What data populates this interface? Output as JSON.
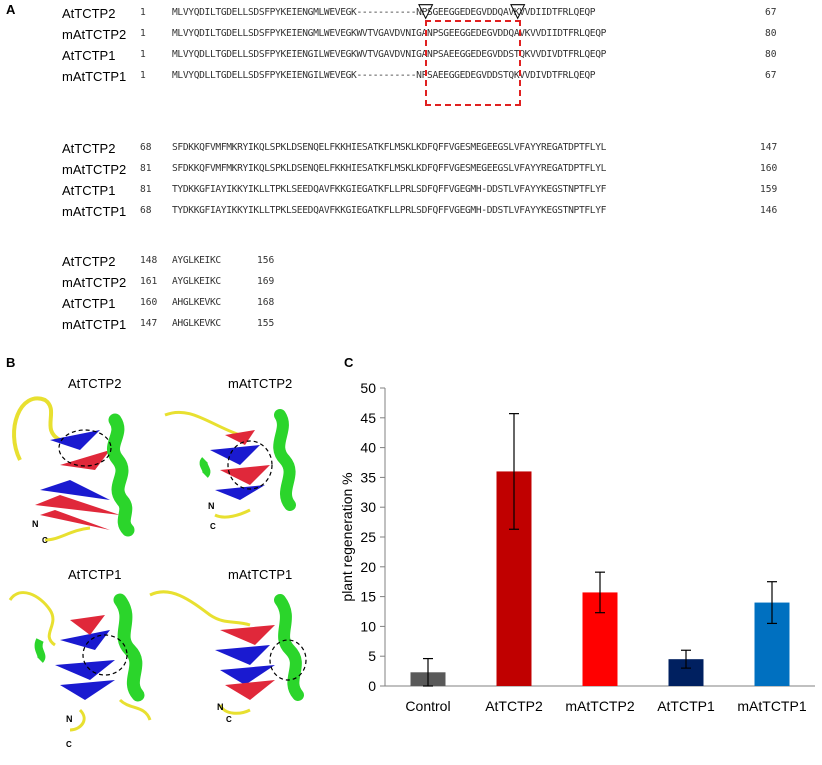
{
  "panels": {
    "a": "A",
    "b": "B",
    "c": "C"
  },
  "alignment": {
    "blocks": [
      {
        "rows": [
          {
            "name": "AtTCTP2",
            "start": "1",
            "seq": "MLVYQDILTGDELLSDSFPYKEIENGMLWEVEGK-----------NPSGEEGGEDEGVDDQAVKVVDIIDTFRLQEQP",
            "end": "67"
          },
          {
            "name": "mAtTCTP2",
            "start": "1",
            "seq": "MLVYQDILTGDELLSDSFPYKEIENGMLWEVEGKWVTVGAVDVNIGANPSGEEGGEDEGVDDQAVKVVDIIDTFRLQEQP",
            "end": "80"
          },
          {
            "name": "AtTCTP1",
            "start": "1",
            "seq": "MLVYQDLLTGDELLSDSFPYKEIENGILWEVEGKWVTVGAVDVNIGANPSAEEGGEDEGVDDSTQKVVDIVDTFRLQEQP",
            "end": "80"
          },
          {
            "name": "mAtTCTP1",
            "start": "1",
            "seq": "MLVYQDLLTGDELLSDSFPYKEIENGILWEVEGK-----------NPSAEEGGEDEGVDDSTQKVVDIVDTFRLQEQP",
            "end": "67"
          }
        ]
      },
      {
        "rows": [
          {
            "name": "AtTCTP2",
            "start": "68",
            "seq": "SFDKKQFVMFMKRYIKQLSPKLDSENQELFKKHIESATKFLMSKLKDFQFFVGESMEGEEGSLVFAYYREGATDPTFLYL",
            "end": "147"
          },
          {
            "name": "mAtTCTP2",
            "start": "81",
            "seq": "SFDKKQFVMFMKRYIKQLSPKLDSENQELFKKHIESATKFLMSKLKDFQFFVGESMEGEEGSLVFAYYREGATDPTFLYL",
            "end": "160"
          },
          {
            "name": "AtTCTP1",
            "start": "81",
            "seq": "TYDKKGFIAYIKKYIKLLTPKLSEEDQAVFKKGIEGATKFLLPRLSDFQFFVGEGMH-DDSTLVFAYYKEGSTNPTFLYF",
            "end": "159"
          },
          {
            "name": "mAtTCTP1",
            "start": "68",
            "seq": "TYDKKGFIAYIKKYIKLLTPKLSEEDQAVFKKGIEGATKFLLPRLSDFQFFVGEGMH-DDSTLVFAYYKEGSTNPTFLYF",
            "end": "146"
          }
        ]
      },
      {
        "rows": [
          {
            "name": "AtTCTP2",
            "start": "148",
            "seq": "AYGLKEIKC",
            "end": "156"
          },
          {
            "name": "mAtTCTP2",
            "start": "161",
            "seq": "AYGLKEIKC",
            "end": "169"
          },
          {
            "name": "AtTCTP1",
            "start": "160",
            "seq": "AHGLKEVKC",
            "end": "168"
          },
          {
            "name": "mAtTCTP1",
            "start": "147",
            "seq": "AHGLKEVKC",
            "end": "155"
          }
        ]
      }
    ]
  },
  "structures": {
    "titles": [
      "AtTCTP2",
      "mAtTCTP2",
      "AtTCTP1",
      "mAtTCTP1"
    ],
    "terminus_n": "N",
    "terminus_c": "C",
    "colors": {
      "helix": "#2bd52b",
      "strand_red": "#e0283a",
      "strand_blue": "#1a1ad0",
      "loop": "#e8e030"
    }
  },
  "chart_data": {
    "type": "bar",
    "categories": [
      "Control",
      "AtTCTP2",
      "mAtTCTP2",
      "AtTCTP1",
      "mAtTCTP1"
    ],
    "values": [
      2.3,
      36.0,
      15.7,
      4.5,
      14.0
    ],
    "errors": [
      2.3,
      9.7,
      3.4,
      1.5,
      3.5
    ],
    "colors": [
      "#595959",
      "#c00000",
      "#ff0000",
      "#002060",
      "#0070c0"
    ],
    "ylabel": "plant regeneration %",
    "xlabel": "",
    "ylim": [
      0,
      50
    ],
    "yticks": [
      0,
      5,
      10,
      15,
      20,
      25,
      30,
      35,
      40,
      45,
      50
    ],
    "grid": false
  }
}
